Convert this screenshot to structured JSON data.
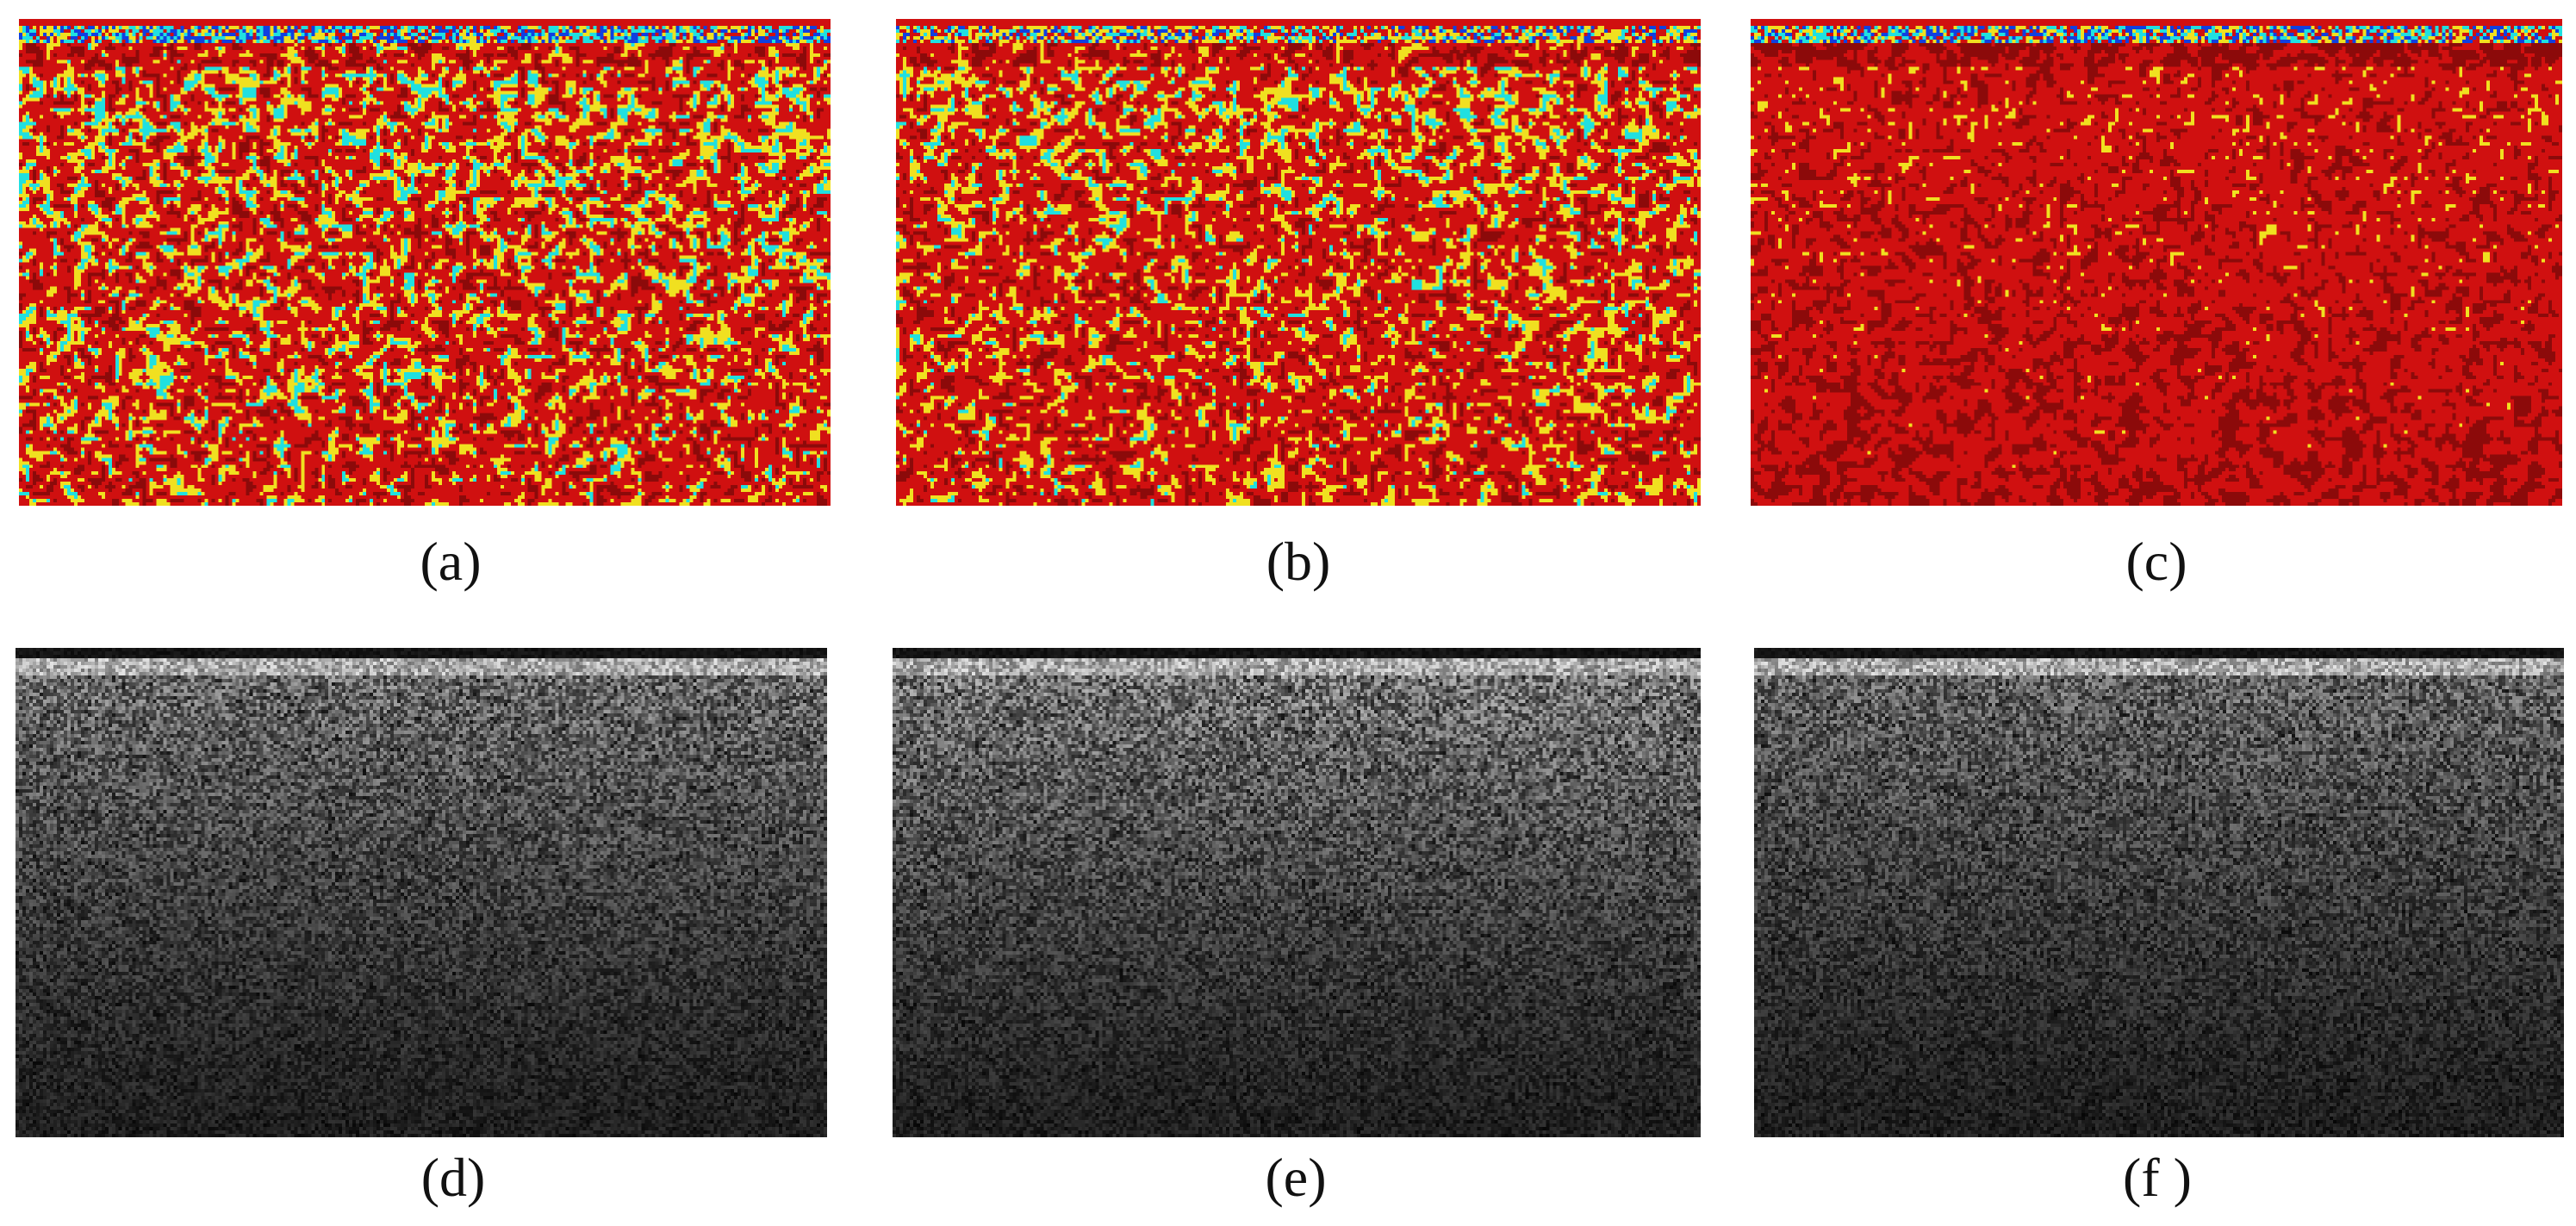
{
  "figure": {
    "panels": [
      {
        "id": "a",
        "label": "(a)",
        "style": "color-map",
        "upper_band": "blue-cyan",
        "dominant": "mixed-red-cyan"
      },
      {
        "id": "b",
        "label": "(b)",
        "style": "color-map",
        "upper_band": "cyan",
        "dominant": "red-yellow-cyan"
      },
      {
        "id": "c",
        "label": "(c)",
        "style": "color-map",
        "upper_band": "blue-cyan",
        "dominant": "red-yellow"
      },
      {
        "id": "d",
        "label": "(d)",
        "style": "grayscale-speckle"
      },
      {
        "id": "e",
        "label": "(e)",
        "style": "grayscale-speckle"
      },
      {
        "id": "f",
        "label": "(f )",
        "style": "grayscale-speckle"
      }
    ],
    "colors": {
      "background": "#ffffff",
      "caption_text": "#111111",
      "jet_red": "#d01010",
      "jet_yellow": "#f0e020",
      "jet_cyan": "#20e0e0",
      "jet_blue": "#1040e0"
    }
  }
}
